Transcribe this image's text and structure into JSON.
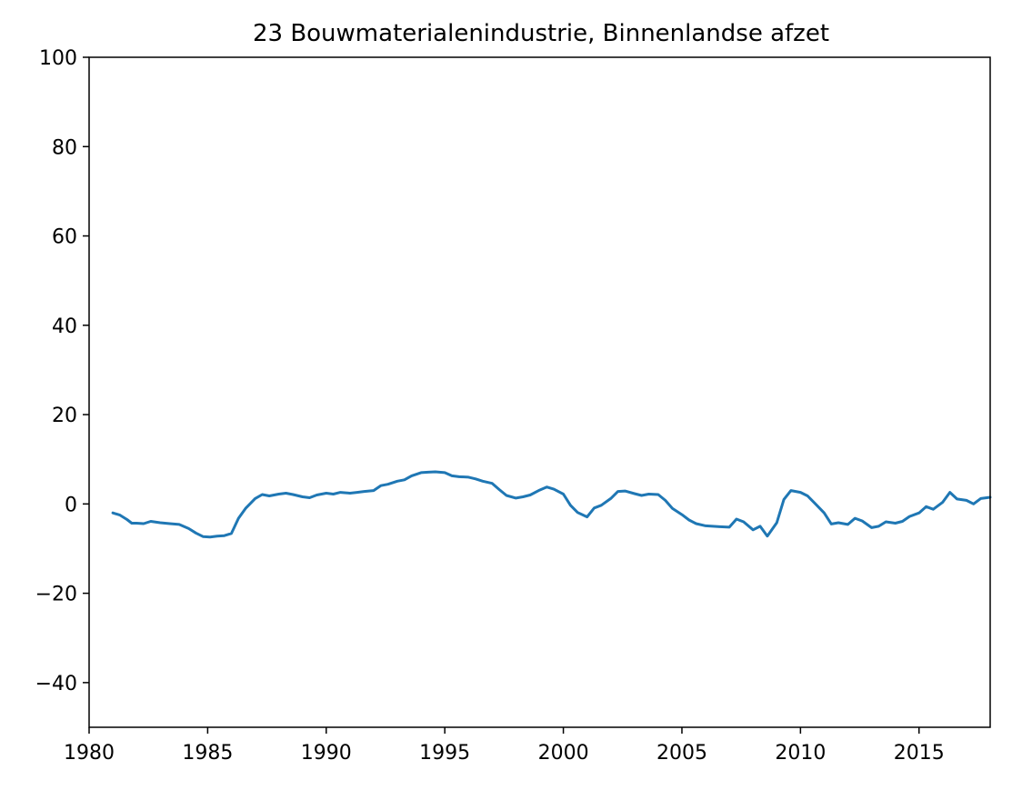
{
  "chart_data": {
    "type": "line",
    "title": "23 Bouwmaterialenindustrie, Binnenlandse afzet",
    "xlabel": "",
    "ylabel": "",
    "xlim": [
      1980,
      2018
    ],
    "ylim": [
      -50,
      100
    ],
    "x_ticks": [
      1980,
      1985,
      1990,
      1995,
      2000,
      2005,
      2010,
      2015
    ],
    "y_ticks": [
      -40,
      -20,
      0,
      20,
      40,
      60,
      80,
      100
    ],
    "x_tick_labels": [
      "1980",
      "1985",
      "1990",
      "1995",
      "2000",
      "2005",
      "2010",
      "2015"
    ],
    "y_tick_labels": [
      "−40",
      "−20",
      "0",
      "20",
      "40",
      "60",
      "80",
      "100"
    ],
    "grid": false,
    "series": [
      {
        "color": "#1f77b4",
        "x": [
          1981.0,
          1981.3,
          1981.6,
          1981.8,
          1982.0,
          1982.3,
          1982.6,
          1983.0,
          1983.4,
          1983.8,
          1984.2,
          1984.5,
          1984.8,
          1985.1,
          1985.4,
          1985.7,
          1986.0,
          1986.3,
          1986.6,
          1987.0,
          1987.3,
          1987.6,
          1988.0,
          1988.3,
          1988.6,
          1989.0,
          1989.3,
          1989.6,
          1990.0,
          1990.3,
          1990.6,
          1991.0,
          1991.3,
          1991.6,
          1992.0,
          1992.3,
          1992.6,
          1993.0,
          1993.3,
          1993.6,
          1994.0,
          1994.3,
          1994.6,
          1995.0,
          1995.3,
          1995.6,
          1996.0,
          1996.3,
          1996.6,
          1997.0,
          1997.3,
          1997.6,
          1998.0,
          1998.3,
          1998.6,
          1999.0,
          1999.3,
          1999.6,
          2000.0,
          2000.3,
          2000.6,
          2001.0,
          2001.3,
          2001.6,
          2002.0,
          2002.3,
          2002.6,
          2003.0,
          2003.3,
          2003.6,
          2004.0,
          2004.3,
          2004.6,
          2005.0,
          2005.3,
          2005.6,
          2006.0,
          2006.3,
          2006.6,
          2007.0,
          2007.3,
          2007.6,
          2008.0,
          2008.3,
          2008.6,
          2009.0,
          2009.3,
          2009.6,
          2010.0,
          2010.3,
          2010.6,
          2011.0,
          2011.3,
          2011.6,
          2012.0,
          2012.3,
          2012.6,
          2013.0,
          2013.3,
          2013.6,
          2014.0,
          2014.3,
          2014.6,
          2015.0,
          2015.3,
          2015.6,
          2016.0,
          2016.3,
          2016.6,
          2017.0,
          2017.3,
          2017.6,
          2018.0
        ],
        "y": [
          -2,
          -2.5,
          -3.5,
          -4.3,
          -4.3,
          -4.4,
          -3.9,
          -4.2,
          -4.4,
          -4.6,
          -5.5,
          -6.5,
          -7.3,
          -7.4,
          -7.2,
          -7.1,
          -6.6,
          -3.2,
          -1.0,
          1.2,
          2.1,
          1.8,
          2.2,
          2.4,
          2.1,
          1.6,
          1.4,
          2.0,
          2.4,
          2.2,
          2.6,
          2.4,
          2.6,
          2.8,
          3.0,
          4.1,
          4.4,
          5.1,
          5.4,
          6.3,
          7.0,
          7.1,
          7.2,
          7.0,
          6.3,
          6.1,
          6.0,
          5.6,
          5.1,
          4.6,
          3.2,
          1.9,
          1.3,
          1.6,
          2.0,
          3.1,
          3.8,
          3.3,
          2.2,
          -0.3,
          -1.9,
          -2.9,
          -0.9,
          -0.3,
          1.2,
          2.8,
          2.9,
          2.3,
          1.9,
          2.2,
          2.1,
          0.8,
          -1.0,
          -2.4,
          -3.6,
          -4.4,
          -4.9,
          -5.0,
          -5.1,
          -5.2,
          -3.4,
          -4.0,
          -5.8,
          -5.0,
          -7.2,
          -4.2,
          1.0,
          3.0,
          2.6,
          1.8,
          0.2,
          -2.0,
          -4.5,
          -4.2,
          -4.6,
          -3.2,
          -3.8,
          -5.3,
          -5.0,
          -4.0,
          -4.3,
          -3.9,
          -2.8,
          -2.0,
          -0.6,
          -1.2,
          0.4,
          2.6,
          1.1,
          0.8,
          0.0,
          1.2,
          1.5
        ]
      }
    ]
  }
}
